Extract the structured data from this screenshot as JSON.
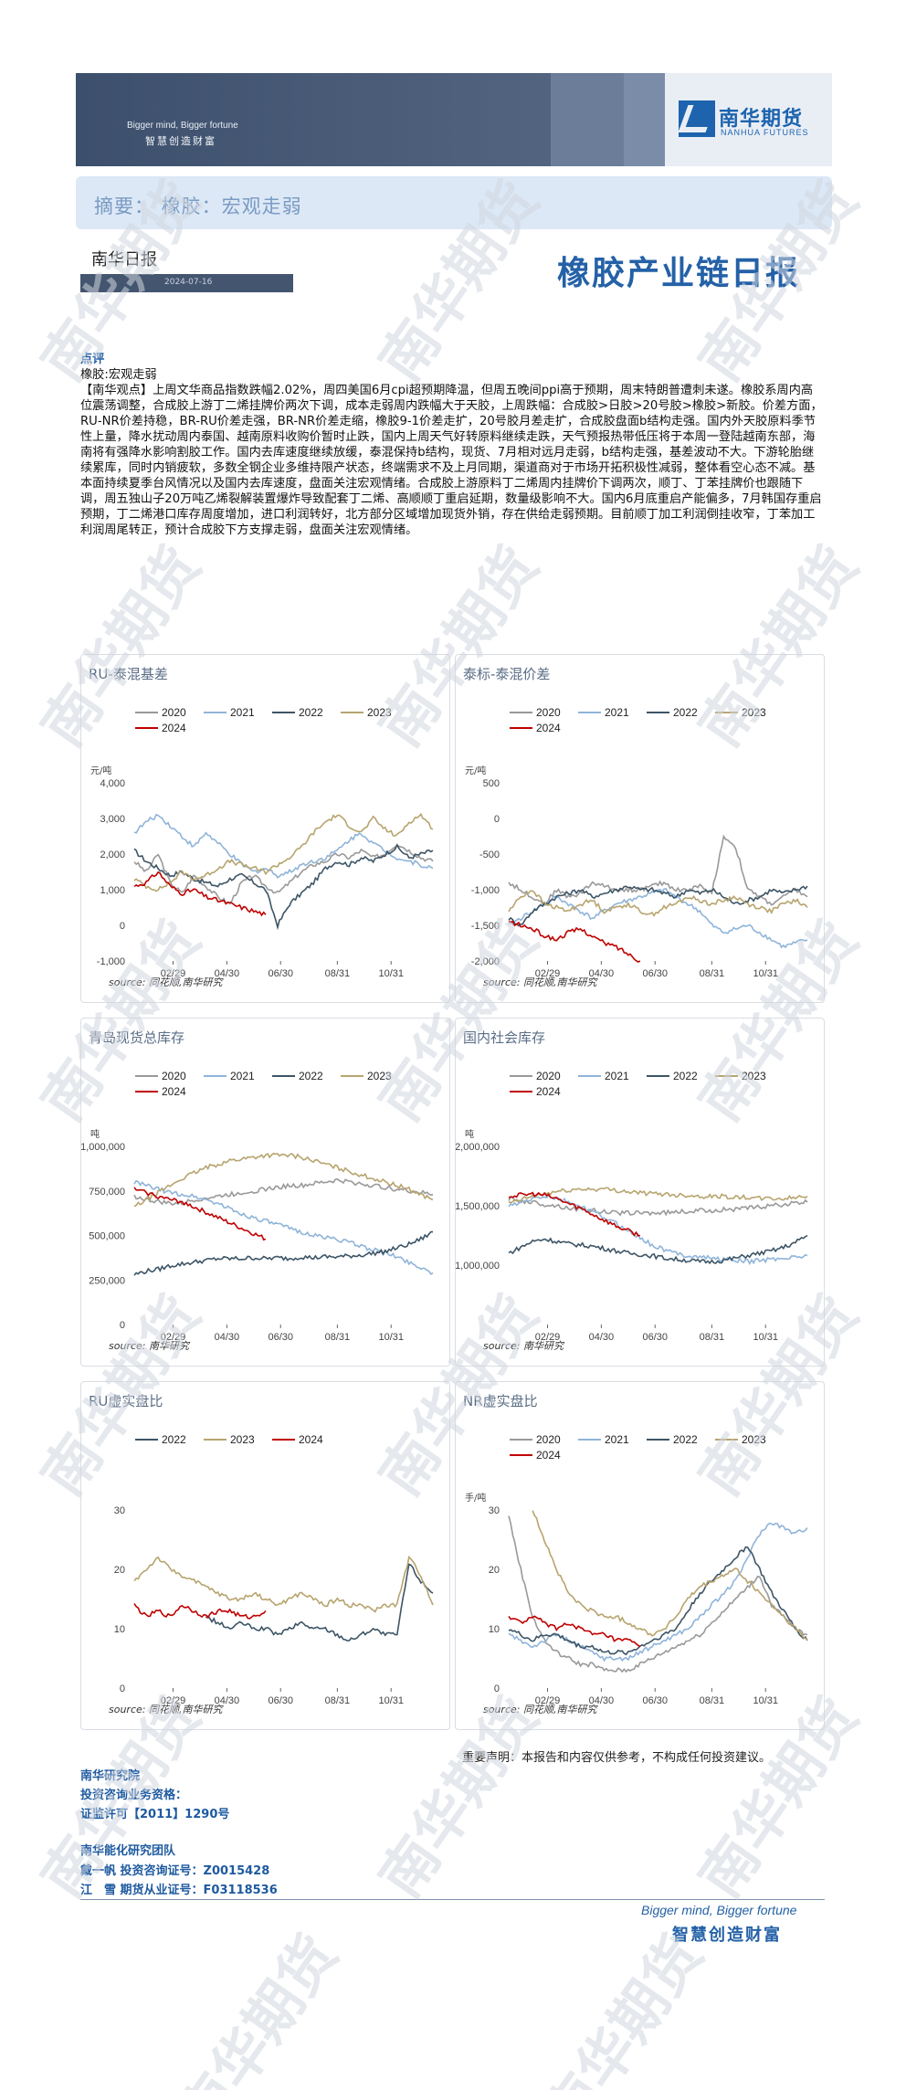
{
  "header": {
    "slogan_en": "Bigger mind, Bigger fortune",
    "slogan_cn": "智慧创造财富",
    "logo_cn": "南华期货",
    "logo_en": "NANHUA FUTURES",
    "brand_color": "#1d63ae"
  },
  "summary": {
    "text": "摘要：  橡胶：宏观走弱"
  },
  "report": {
    "daily_label": "南华日报",
    "date": "2024-07-16",
    "title": "橡胶产业链日报"
  },
  "commentary": {
    "heading": "点评",
    "subheading": "橡胶:宏观走弱",
    "body": "【南华观点】上周文华商品指数跌幅2.02%，周四美国6月cpi超预期降温，但周五晚间ppi高于预期，周末特朗普遭刺未遂。橡胶系周内高位震荡调整，合成胶上游丁二烯挂牌价两次下调，成本走弱周内跌幅大于天胶，上周跌幅：合成胶>日胶>20号胶>橡胶>新胶。价差方面，RU-NR价差持稳，BR-RU价差走强，BR-NR价差走缩，橡胶9-1价差走扩，20号胶月差走扩，合成胶盘面b结构走强。国内外天胶原料季节性上量，降水扰动周内泰国、越南原料收购价暂时止跌，国内上周天气好转原料继续走跌，天气预报热带低压将于本周一登陆越南东部，海南将有强降水影响割胶工作。国内去库速度继续放缓，泰混保持b结构，现货、7月相对远月走弱，b结构走强，基差波动不大。下游轮胎继续累库，同时内销疲软，多数全钢企业多维持限产状态，终端需求不及上月同期，渠道商对于市场开拓积极性减弱，整体看空心态不减。基本面持续夏季台风情况以及国内去库速度，盘面关注宏观情绪。合成胶上游原料丁二烯周内挂牌价下调两次，顺丁、丁苯挂牌价也跟随下调，周五独山子20万吨乙烯裂解装置爆炸导致配套丁二烯、高顺顺丁重启延期，数量级影响不大。国内6月底重启产能偏多，7月韩国存重启预期，丁二烯港口库存周度增加，进口利润转好，北方部分区域增加现货外销，存在供给走弱预期。目前顺丁加工利润倒挂收窄，丁苯加工利润周尾转正，预计合成胶下方支撑走弱，盘面关注宏观情绪。"
  },
  "chart_data": [
    {
      "type": "line",
      "title": "RU-泰混基差",
      "ylabel": "元/吨",
      "ylim": [
        -1000,
        4000
      ],
      "yticks": [
        -1000,
        0,
        1000,
        2000,
        3000,
        4000
      ],
      "xticks": [
        "02/29",
        "04/30",
        "06/30",
        "08/31",
        "10/31"
      ],
      "legend": "top",
      "source": "source: 同花顺,南华研究",
      "series": [
        {
          "name": "2020",
          "color": "#999999",
          "values": [
            1800,
            1500,
            2000,
            1200,
            900,
            1400,
            1100,
            800,
            600,
            1200,
            1400,
            1100,
            900,
            1200,
            1500,
            1700,
            1800,
            2000,
            1900,
            2100,
            1900,
            2000,
            2300,
            2100,
            1900,
            1800
          ]
        },
        {
          "name": "2021",
          "color": "#8fb4d9",
          "values": [
            2600,
            2900,
            3100,
            2800,
            2500,
            2200,
            2600,
            2300,
            2000,
            1700,
            1500,
            1600,
            1400,
            1500,
            1700,
            1800,
            1900,
            2100,
            2400,
            2600,
            2300,
            2100,
            1900,
            1800,
            1700,
            1600
          ]
        },
        {
          "name": "2022",
          "color": "#3d5566",
          "values": [
            2100,
            1800,
            1600,
            1400,
            1500,
            1300,
            1200,
            1100,
            1300,
            1400,
            1200,
            1000,
            0,
            600,
            900,
            1200,
            1600,
            1800,
            1700,
            1900,
            1800,
            2000,
            2200,
            1900,
            2000,
            2100
          ]
        },
        {
          "name": "2023",
          "color": "#b7a46e",
          "values": [
            1300,
            1100,
            1000,
            1200,
            1500,
            1300,
            1400,
            1600,
            1800,
            1700,
            1600,
            1500,
            1700,
            1900,
            2200,
            2600,
            2900,
            3100,
            2800,
            2600,
            3000,
            2700,
            2500,
            2900,
            3100,
            2700
          ]
        },
        {
          "name": "2024",
          "color": "#c00000",
          "values": [
            1100,
            1200,
            1500,
            1100,
            900,
            1000,
            800,
            700,
            600,
            500,
            400,
            300
          ]
        }
      ]
    },
    {
      "type": "line",
      "title": "泰标-泰混价差",
      "ylabel": "元/吨",
      "ylim": [
        -2000,
        500
      ],
      "yticks": [
        -2000,
        -1500,
        -1000,
        -500,
        0,
        500
      ],
      "xticks": [
        "02/29",
        "04/30",
        "06/30",
        "08/31",
        "10/31"
      ],
      "legend": "top",
      "source": "source: 同花顺,南华研究",
      "series": [
        {
          "name": "2020",
          "color": "#999999",
          "values": [
            -900,
            -1000,
            -1100,
            -1200,
            -1000,
            -1100,
            -1050,
            -900,
            -950,
            -1000,
            -1000,
            -1000,
            -950,
            -900,
            -1000,
            -1000,
            -950,
            -1050,
            -250,
            -400,
            -1000,
            -1100,
            -1200,
            -1100,
            -1000,
            -1100
          ]
        },
        {
          "name": "2021",
          "color": "#8fb4d9",
          "values": [
            -1500,
            -1400,
            -1300,
            -1200,
            -1100,
            -1200,
            -1300,
            -1400,
            -1300,
            -1200,
            -1150,
            -1100,
            -1050,
            -1000,
            -1100,
            -1200,
            -1300,
            -1500,
            -1600,
            -1550,
            -1500,
            -1600,
            -1700,
            -1800,
            -1750,
            -1700
          ]
        },
        {
          "name": "2022",
          "color": "#3d5566",
          "values": [
            -1400,
            -1500,
            -1300,
            -1200,
            -1100,
            -1050,
            -1000,
            -1100,
            -1050,
            -1000,
            -950,
            -1000,
            -1000,
            -1050,
            -1100,
            -1000,
            -1050,
            -1000,
            -1100,
            -1200,
            -1150,
            -1100,
            -1000,
            -1050,
            -1000,
            -950
          ]
        },
        {
          "name": "2023",
          "color": "#b7a46e",
          "values": [
            -1300,
            -1100,
            -1000,
            -1200,
            -1250,
            -1300,
            -1200,
            -1150,
            -1300,
            -1250,
            -1200,
            -1300,
            -1350,
            -1250,
            -1200,
            -1100,
            -1150,
            -1200,
            -1150,
            -1100,
            -1200,
            -1250,
            -1300,
            -1200,
            -1150,
            -1250
          ]
        },
        {
          "name": "2024",
          "color": "#c00000",
          "values": [
            -1450,
            -1500,
            -1550,
            -1650,
            -1700,
            -1600,
            -1550,
            -1650,
            -1750,
            -1800,
            -1900,
            -2000
          ]
        }
      ]
    },
    {
      "type": "line",
      "title": "青岛现货总库存",
      "ylabel": "吨",
      "ylim": [
        0,
        1000000
      ],
      "yticks": [
        0,
        250000,
        500000,
        750000,
        1000000
      ],
      "xticks": [
        "02/29",
        "04/30",
        "06/30",
        "08/31",
        "10/31"
      ],
      "legend": "top",
      "source": "source: 南华研究",
      "series": [
        {
          "name": "2020",
          "color": "#999999",
          "values": [
            720000,
            700000,
            690000,
            680000,
            680000,
            700000,
            710000,
            720000,
            730000,
            740000,
            750000,
            760000,
            770000,
            780000,
            780000,
            790000,
            800000,
            810000,
            800000,
            790000,
            780000,
            770000,
            760000,
            750000,
            740000,
            730000
          ]
        },
        {
          "name": "2021",
          "color": "#8fb4d9",
          "values": [
            800000,
            780000,
            760000,
            740000,
            730000,
            720000,
            700000,
            680000,
            650000,
            620000,
            600000,
            580000,
            560000,
            540000,
            520000,
            500000,
            490000,
            480000,
            460000,
            440000,
            420000,
            400000,
            380000,
            350000,
            320000,
            290000
          ]
        },
        {
          "name": "2022",
          "color": "#3d5566",
          "values": [
            280000,
            300000,
            310000,
            330000,
            340000,
            350000,
            360000,
            370000,
            370000,
            370000,
            375000,
            370000,
            375000,
            370000,
            380000,
            375000,
            380000,
            380000,
            385000,
            390000,
            400000,
            410000,
            430000,
            450000,
            480000,
            520000
          ]
        },
        {
          "name": "2023",
          "color": "#b7a46e",
          "values": [
            660000,
            700000,
            740000,
            780000,
            820000,
            850000,
            880000,
            900000,
            920000,
            930000,
            940000,
            950000,
            950000,
            950000,
            940000,
            920000,
            900000,
            880000,
            860000,
            840000,
            820000,
            800000,
            780000,
            760000,
            730000,
            700000
          ]
        },
        {
          "name": "2024",
          "color": "#c00000",
          "values": [
            760000,
            740000,
            720000,
            700000,
            690000,
            660000,
            630000,
            600000,
            570000,
            540000,
            510000,
            480000
          ]
        }
      ]
    },
    {
      "type": "line",
      "title": "国内社会库存",
      "ylabel": "吨",
      "ylim": [
        500000,
        2000000
      ],
      "yticks": [
        1000000,
        1500000,
        2000000
      ],
      "xticks": [
        "02/29",
        "04/30",
        "06/30",
        "08/31",
        "10/31"
      ],
      "legend": "top",
      "source": "source: 南华研究",
      "series": [
        {
          "name": "2020",
          "color": "#999999",
          "values": [
            1560000,
            1540000,
            1530000,
            1510000,
            1500000,
            1480000,
            1470000,
            1460000,
            1450000,
            1440000,
            1440000,
            1440000,
            1440000,
            1440000,
            1450000,
            1450000,
            1460000,
            1460000,
            1470000,
            1470000,
            1480000,
            1490000,
            1500000,
            1510000,
            1520000,
            1530000
          ]
        },
        {
          "name": "2021",
          "color": "#8fb4d9",
          "values": [
            1500000,
            1520000,
            1560000,
            1580000,
            1560000,
            1530000,
            1490000,
            1450000,
            1400000,
            1350000,
            1290000,
            1230000,
            1170000,
            1130000,
            1100000,
            1080000,
            1070000,
            1060000,
            1050000,
            1040000,
            1030000,
            1040000,
            1050000,
            1060000,
            1070000,
            1080000
          ]
        },
        {
          "name": "2022",
          "color": "#3d5566",
          "values": [
            1100000,
            1150000,
            1200000,
            1220000,
            1200000,
            1180000,
            1170000,
            1160000,
            1140000,
            1120000,
            1100000,
            1090000,
            1080000,
            1060000,
            1050000,
            1040000,
            1030000,
            1030000,
            1040000,
            1060000,
            1080000,
            1100000,
            1120000,
            1150000,
            1190000,
            1250000
          ]
        },
        {
          "name": "2023",
          "color": "#b7a46e",
          "values": [
            1520000,
            1550000,
            1580000,
            1600000,
            1620000,
            1630000,
            1640000,
            1640000,
            1640000,
            1630000,
            1620000,
            1610000,
            1600000,
            1600000,
            1590000,
            1590000,
            1580000,
            1580000,
            1580000,
            1570000,
            1570000,
            1560000,
            1560000,
            1560000,
            1570000,
            1580000
          ]
        },
        {
          "name": "2024",
          "color": "#c00000",
          "values": [
            1580000,
            1590000,
            1600000,
            1590000,
            1560000,
            1520000,
            1480000,
            1430000,
            1380000,
            1330000,
            1290000,
            1250000
          ]
        }
      ]
    },
    {
      "type": "line",
      "title": "RU虚实盘比",
      "ylim": [
        0,
        30
      ],
      "yticks": [
        0,
        10,
        20,
        30
      ],
      "xticks": [
        "02/29",
        "04/30",
        "06/30",
        "08/31",
        "10/31"
      ],
      "legend": "top",
      "source": "source: 同花顺,南华研究",
      "series": [
        {
          "name": "2022",
          "color": "#3d5566",
          "values": [
            null,
            null,
            null,
            null,
            null,
            null,
            12,
            11,
            10,
            11,
            10,
            10,
            9,
            10,
            11,
            10,
            10,
            9,
            8,
            9,
            10,
            9,
            9,
            21,
            18,
            16
          ]
        },
        {
          "name": "2023",
          "color": "#b7a46e",
          "values": [
            18,
            20,
            22,
            20,
            19,
            18,
            17,
            16,
            15,
            15,
            16,
            15,
            14,
            15,
            16,
            15,
            14,
            15,
            14,
            14,
            13,
            14,
            14,
            22,
            19,
            14
          ]
        },
        {
          "name": "2024",
          "color": "#c00000",
          "values": [
            14,
            12,
            13,
            12,
            14,
            13,
            12,
            13,
            13,
            12,
            12,
            13
          ]
        }
      ]
    },
    {
      "type": "line",
      "title": "NR虚实盘比",
      "ylabel": "手/吨",
      "ylim": [
        0,
        30
      ],
      "yticks": [
        0,
        10,
        20,
        30
      ],
      "xticks": [
        "02/29",
        "04/30",
        "06/30",
        "08/31",
        "10/31"
      ],
      "legend": "top",
      "source": "source: 同花顺,南华研究",
      "series": [
        {
          "name": "2020",
          "color": "#999999",
          "values": [
            29,
            20,
            12,
            8,
            6,
            5,
            4,
            4,
            3,
            3,
            3,
            4,
            5,
            6,
            7,
            8,
            9,
            11,
            13,
            15,
            17,
            19,
            14,
            12,
            10,
            9
          ]
        },
        {
          "name": "2021",
          "color": "#8fb4d9",
          "values": [
            9,
            8,
            7,
            8,
            9,
            8,
            7,
            6,
            5,
            5,
            5,
            6,
            7,
            8,
            9,
            10,
            12,
            14,
            16,
            18,
            22,
            26,
            28,
            27,
            26,
            27
          ]
        },
        {
          "name": "2022",
          "color": "#3d5566",
          "values": [
            10,
            9,
            8,
            9,
            9,
            8,
            7,
            7,
            6,
            6,
            6,
            7,
            8,
            9,
            10,
            13,
            16,
            18,
            20,
            22,
            24,
            20,
            16,
            13,
            10,
            8
          ]
        },
        {
          "name": "2023",
          "color": "#b7a46e",
          "values": [
            null,
            null,
            30,
            25,
            20,
            16,
            14,
            13,
            12,
            12,
            11,
            10,
            9,
            10,
            12,
            15,
            17,
            18,
            19,
            20,
            18,
            16,
            14,
            12,
            10,
            8
          ]
        },
        {
          "name": "2024",
          "color": "#c00000",
          "values": [
            12,
            11,
            12,
            11,
            10,
            11,
            10,
            9,
            9,
            8,
            8,
            7
          ]
        }
      ]
    }
  ],
  "footer": {
    "disclaimer": "重要声明：本报告和内容仅供参考，不构成任何投资建议。",
    "institute": "南华研究院",
    "qualification": "投资咨询业务资格：",
    "license": "证监许可【2011】1290号",
    "team": "南华能化研究团队",
    "analyst1": "戴一帆 投资咨询证号：Z0015428",
    "analyst2": "江　雪 期货从业证号：F03118536",
    "slogan_en": "Bigger mind, Bigger fortune",
    "slogan_cn": "智慧创造财富"
  },
  "watermark": {
    "text": "南华期货",
    "color": "#cfd6df"
  }
}
